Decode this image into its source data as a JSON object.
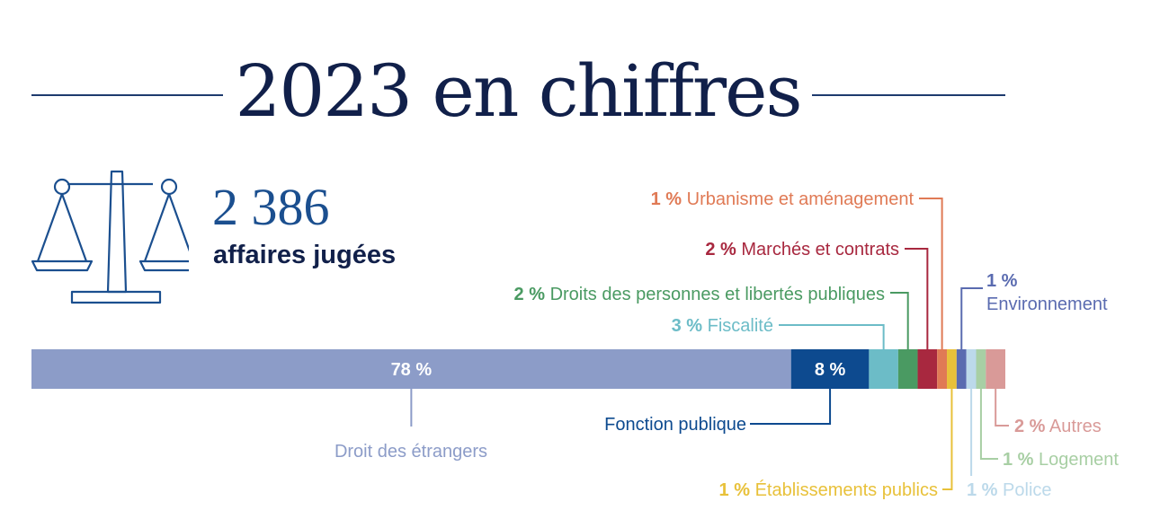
{
  "header": {
    "title": "2023 en chiffres"
  },
  "summary": {
    "count": "2 386",
    "label": "affaires jugées"
  },
  "chart_data": {
    "type": "bar",
    "orientation": "horizontal-stacked",
    "unit": "%",
    "segments": [
      {
        "pct": "78 %",
        "name": "Droit des étrangers",
        "value": 78,
        "color": "#8c9cc8"
      },
      {
        "pct": "8 %",
        "name": "Fonction publique",
        "value": 8,
        "color": "#0d4a8f"
      },
      {
        "pct": "3 %",
        "name": "Fiscalité",
        "value": 3,
        "color": "#6cbcc7"
      },
      {
        "pct": "2 %",
        "name": "Droits des personnes et libertés publiques",
        "value": 2,
        "color": "#4a9a62"
      },
      {
        "pct": "2 %",
        "name": "Marchés et contrats",
        "value": 2,
        "color": "#a8283f"
      },
      {
        "pct": "1 %",
        "name": "Urbanisme et aménagement",
        "value": 1,
        "color": "#e07a55"
      },
      {
        "pct": "1 %",
        "name": "Établissements publics",
        "value": 1,
        "color": "#e8c13a"
      },
      {
        "pct": "1 %",
        "name": "Environnement",
        "value": 1,
        "color": "#5a6bb0"
      },
      {
        "pct": "1 %",
        "name": "Police",
        "value": 1,
        "color": "#bcd9ea"
      },
      {
        "pct": "1 %",
        "name": "Logement",
        "value": 1,
        "color": "#a8cfa4"
      },
      {
        "pct": "2 %",
        "name": "Autres",
        "value": 2,
        "color": "#d99a98"
      }
    ]
  }
}
